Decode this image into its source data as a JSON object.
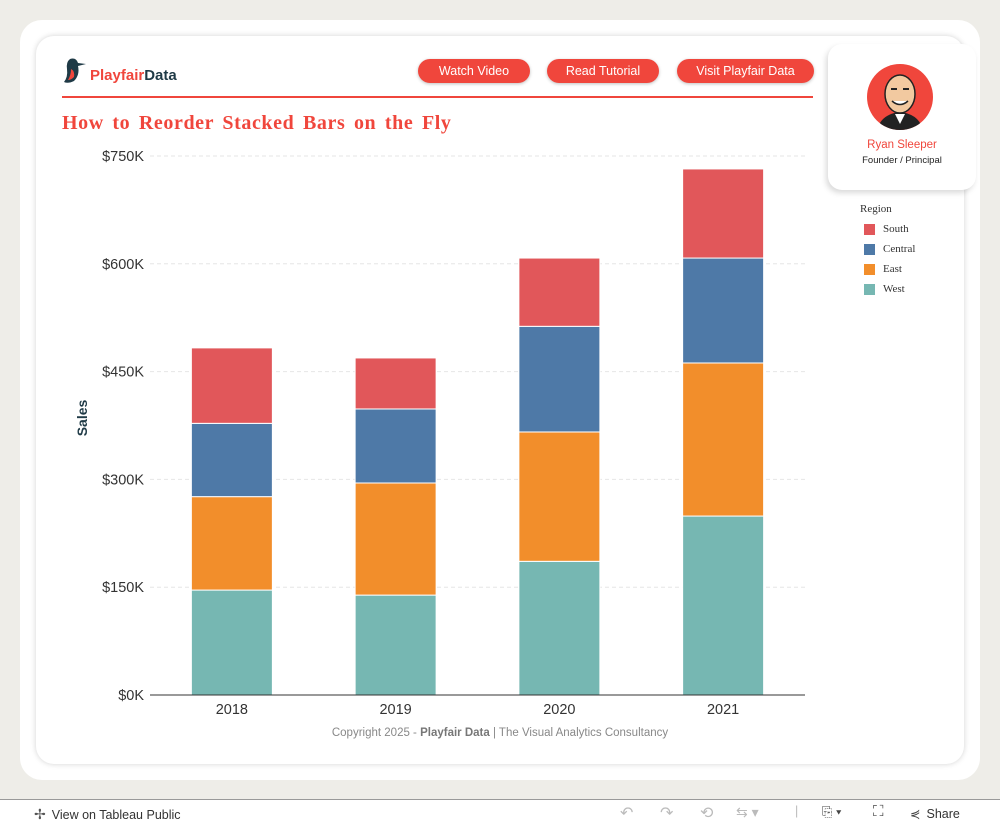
{
  "header": {
    "logo": {
      "part1": "Playfair",
      "part2": "Data"
    },
    "buttons": [
      "Watch Video",
      "Read Tutorial",
      "Visit Playfair Data"
    ],
    "accent": "#f0463c"
  },
  "profile": {
    "name": "Ryan Sleeper",
    "role": "Founder / Principal"
  },
  "legend": {
    "title": "Region",
    "items": [
      {
        "label": "South",
        "color": "#e1575a"
      },
      {
        "label": "Central",
        "color": "#4e79a7"
      },
      {
        "label": "East",
        "color": "#f28e2b"
      },
      {
        "label": "West",
        "color": "#76b7b2"
      }
    ]
  },
  "chart_data": {
    "type": "bar",
    "stacked": true,
    "title": "How to Reorder Stacked Bars on the Fly",
    "xlabel": "",
    "ylabel": "Sales",
    "categories": [
      "2018",
      "2019",
      "2020",
      "2021"
    ],
    "ylim": [
      0,
      750000
    ],
    "yticks": [
      0,
      150000,
      300000,
      450000,
      600000,
      750000
    ],
    "ytick_labels": [
      "$0K",
      "$150K",
      "$300K",
      "$450K",
      "$600K",
      "$750K"
    ],
    "grid": true,
    "legend_position": "right",
    "series": [
      {
        "name": "West",
        "color": "#76b7b2",
        "values": [
          146000,
          139000,
          186000,
          249000
        ]
      },
      {
        "name": "East",
        "color": "#f28e2b",
        "values": [
          130000,
          156000,
          180000,
          213000
        ]
      },
      {
        "name": "Central",
        "color": "#4e79a7",
        "values": [
          102000,
          103000,
          147000,
          146000
        ]
      },
      {
        "name": "South",
        "color": "#e1575a",
        "values": [
          105000,
          71000,
          95000,
          124000
        ]
      }
    ]
  },
  "footer": {
    "prefix": "Copyright 2025 - ",
    "brand": "Playfair Data",
    "suffix": " | The Visual Analytics Consultancy"
  },
  "toolbar": {
    "view_label": "View on Tableau Public",
    "share_label": "Share"
  }
}
